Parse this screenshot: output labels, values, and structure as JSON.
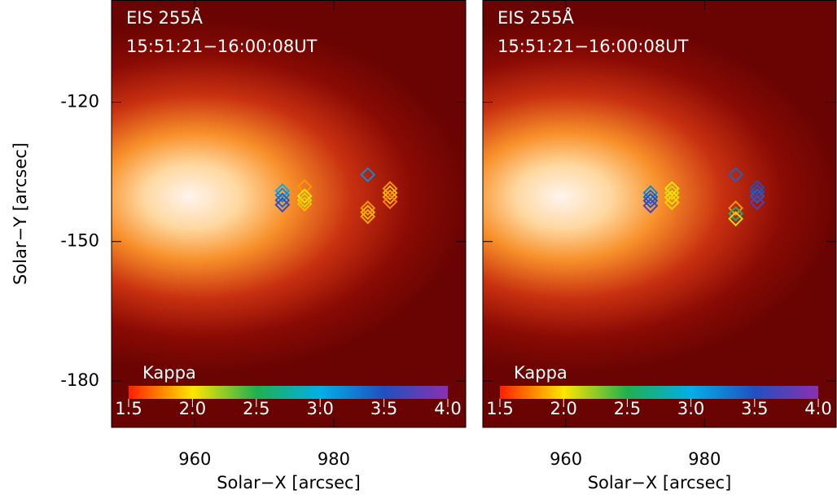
{
  "chart_data": [
    {
      "type": "scatter",
      "title": "EIS 255Å",
      "subtitle": "15:51:21−16:00:08UT",
      "x_label": "Solar−X [arcsec]",
      "y_label": "Solar−Y [arcsec]",
      "xlim": [
        948,
        999
      ],
      "ylim": [
        -190,
        -98
      ],
      "xticks": [
        960,
        980
      ],
      "yticks": [
        -180,
        -150,
        -120
      ],
      "ytick_labels": true,
      "colorbar": {
        "label": "Kappa",
        "lim": [
          1.5,
          4.0
        ],
        "ticks": [
          1.5,
          {
            "value": 2,
            "label": "2.0"
          },
          2.5,
          {
            "value": 3,
            "label": "3.0"
          },
          3.5,
          {
            "value": 4,
            "label": "4.0"
          }
        ],
        "colors": [
          "#ff2000",
          "#ffe600",
          "#1fb050",
          "#00b0e8",
          "#2050c0",
          "#8a30b0"
        ]
      },
      "series": [
        {
          "name": "Kappa",
          "x": [
            972.6,
            972.6,
            972.6,
            972.6,
            975.8,
            975.8,
            975.8,
            975.8,
            984.9,
            984.9,
            984.9,
            984.9,
            988.1,
            988.1,
            988.1,
            988.1
          ],
          "y": [
            -139.1,
            -140.0,
            -141.1,
            -142.1,
            -138.2,
            -140.2,
            -141.1,
            -141.9,
            -135.6,
            -142.8,
            -143.7,
            -144.6,
            -138.6,
            -139.5,
            -140.4,
            -141.4
          ],
          "kappa": [
            3.0,
            3.2,
            3.4,
            3.6,
            1.8,
            2.0,
            2.1,
            1.9,
            3.2,
            1.8,
            1.9,
            1.85,
            1.8,
            1.9,
            1.85,
            1.75
          ]
        }
      ]
    },
    {
      "type": "scatter",
      "title": "EIS 255Å",
      "subtitle": "15:51:21−16:00:08UT",
      "x_label": "Solar−X [arcsec]",
      "xlim": [
        948,
        999
      ],
      "ylim": [
        -190,
        -98
      ],
      "xticks": [
        960,
        980
      ],
      "yticks": [
        -180,
        -150,
        -120
      ],
      "ytick_labels": false,
      "colorbar": {
        "label": "Kappa",
        "lim": [
          1.5,
          4.0
        ],
        "ticks": [
          1.5,
          {
            "value": 2,
            "label": "2.0"
          },
          2.5,
          {
            "value": 3,
            "label": "3.0"
          },
          3.5,
          {
            "value": 4,
            "label": "4.0"
          }
        ],
        "colors": [
          "#ff2000",
          "#ffe600",
          "#1fb050",
          "#00b0e8",
          "#2050c0",
          "#8a30b0"
        ]
      },
      "series": [
        {
          "name": "Kappa",
          "x": [
            972.2,
            972.2,
            972.2,
            972.2,
            975.3,
            975.3,
            975.3,
            975.3,
            984.5,
            984.5,
            984.5,
            984.5,
            987.6,
            987.6,
            987.6,
            987.6
          ],
          "y": [
            -139.5,
            -140.4,
            -141.2,
            -142.3,
            -138.6,
            -139.5,
            -140.5,
            -141.6,
            -135.6,
            -142.8,
            -144.0,
            -145.1,
            -138.4,
            -139.3,
            -140.2,
            -141.6
          ],
          "kappa": [
            3.2,
            3.4,
            3.5,
            3.7,
            2.0,
            2.1,
            2.05,
            1.95,
            3.4,
            1.8,
            2.6,
            2.1,
            3.5,
            3.6,
            3.4,
            3.7
          ]
        }
      ]
    }
  ]
}
